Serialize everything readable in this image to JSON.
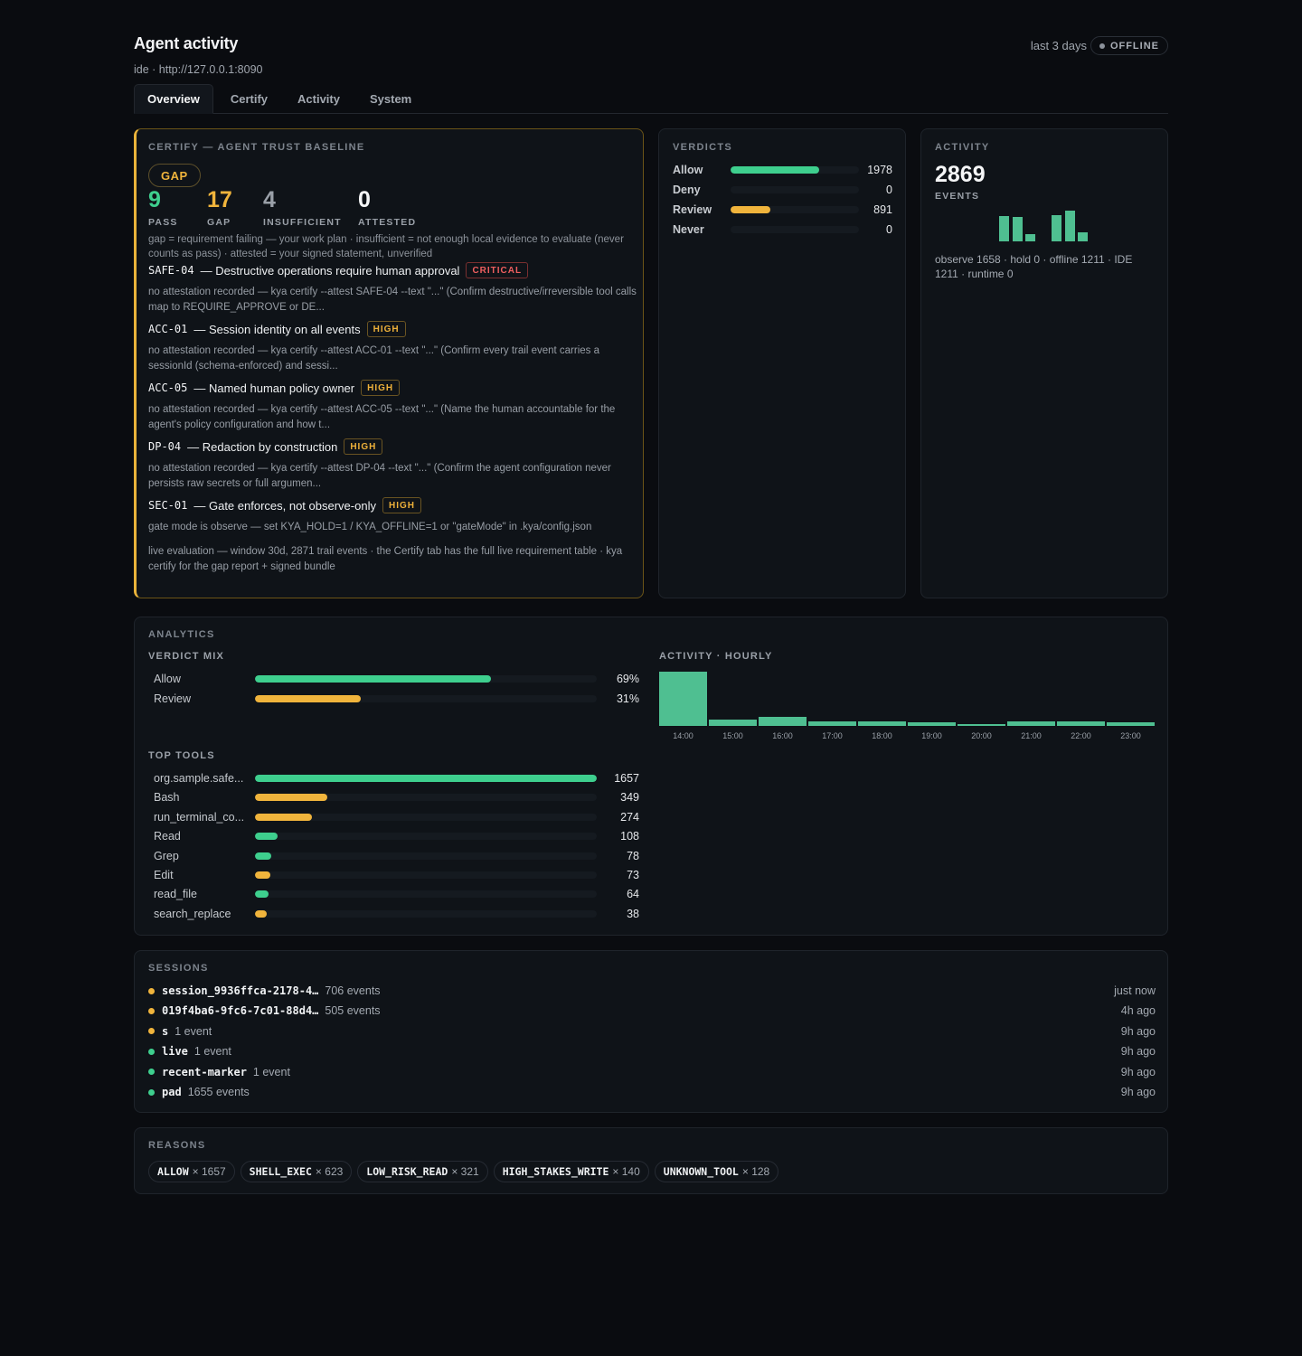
{
  "header": {
    "title": "Agent activity",
    "subtitle": "ide · http://127.0.0.1:8090",
    "range": "last 3 days",
    "status": "OFFLINE"
  },
  "tabs": [
    {
      "label": "Overview",
      "active": true
    },
    {
      "label": "Certify",
      "active": false
    },
    {
      "label": "Activity",
      "active": false
    },
    {
      "label": "System",
      "active": false
    }
  ],
  "certify": {
    "label": "CERTIFY — AGENT TRUST BASELINE",
    "badge": "GAP",
    "stats": [
      {
        "value": "9",
        "label": "PASS",
        "color": "#3ecf8e"
      },
      {
        "value": "17",
        "label": "GAP",
        "color": "#f0b43c"
      },
      {
        "value": "4",
        "label": "INSUFFICIENT",
        "color": "#9aa0a8"
      },
      {
        "value": "0",
        "label": "ATTESTED",
        "color": "#f5f6f7"
      }
    ],
    "legend": "gap = requirement failing — your work plan · insufficient = not enough local evidence to evaluate (never counts as pass) · attested = your signed statement, unverified",
    "requirements": [
      {
        "id": "SAFE-04",
        "title": "— Destructive operations require human approval",
        "severity": "CRITICAL",
        "desc": "no attestation recorded — kya certify --attest SAFE-04 --text \"...\" (Confirm destructive/irreversible tool calls map to REQUIRE_APPROVE or DE..."
      },
      {
        "id": "ACC-01",
        "title": "— Session identity on all events",
        "severity": "HIGH",
        "desc": "no attestation recorded — kya certify --attest ACC-01 --text \"...\" (Confirm every trail event carries a sessionId (schema-enforced) and sessi..."
      },
      {
        "id": "ACC-05",
        "title": "— Named human policy owner",
        "severity": "HIGH",
        "desc": "no attestation recorded — kya certify --attest ACC-05 --text \"...\" (Name the human accountable for the agent's policy configuration and how t..."
      },
      {
        "id": "DP-04",
        "title": "— Redaction by construction",
        "severity": "HIGH",
        "desc": "no attestation recorded — kya certify --attest DP-04 --text \"...\" (Confirm the agent configuration never persists raw secrets or full argumen..."
      },
      {
        "id": "SEC-01",
        "title": "— Gate enforces, not observe-only",
        "severity": "HIGH",
        "desc": "gate mode is observe — set KYA_HOLD=1 / KYA_OFFLINE=1 or \"gateMode\" in .kya/config.json"
      }
    ],
    "live_note": "live evaluation — window 30d, 2871 trail events · the Certify tab has the full live requirement table · kya certify for the gap report + signed bundle"
  },
  "verdicts": {
    "label": "VERDICTS",
    "rows": [
      {
        "name": "Allow",
        "value": 1978,
        "display": "1978",
        "color": "#3ecf8e"
      },
      {
        "name": "Deny",
        "value": 0,
        "display": "0",
        "color": "#ef5f5f"
      },
      {
        "name": "Review",
        "value": 891,
        "display": "891",
        "color": "#f0b43c"
      },
      {
        "name": "Never",
        "value": 0,
        "display": "0",
        "color": "#9aa0a8"
      }
    ],
    "max": 2869
  },
  "activity": {
    "label": "ACTIVITY",
    "total": "2869",
    "events_label": "EVENTS",
    "spark": [
      0.82,
      0.8,
      0.25,
      0,
      0.85,
      1.0,
      0.28
    ],
    "desc": "observe 1658 · hold 0 · offline 1211 · IDE 1211 · runtime 0"
  },
  "analytics": {
    "label": "ANALYTICS",
    "verdict_mix_label": "VERDICT MIX",
    "verdict_mix": [
      {
        "name": "Allow",
        "pct": 69,
        "display": "69%",
        "color": "#3ecf8e"
      },
      {
        "name": "Review",
        "pct": 31,
        "display": "31%",
        "color": "#f0b43c"
      }
    ],
    "top_tools_label": "TOP TOOLS",
    "top_tools": [
      {
        "name": "org.sample.safe...",
        "value": 1657,
        "display": "1657",
        "color": "#3ecf8e"
      },
      {
        "name": "Bash",
        "value": 349,
        "display": "349",
        "color": "#f0b43c"
      },
      {
        "name": "run_terminal_co...",
        "value": 274,
        "display": "274",
        "color": "#f0b43c"
      },
      {
        "name": "Read",
        "value": 108,
        "display": "108",
        "color": "#3ecf8e"
      },
      {
        "name": "Grep",
        "value": 78,
        "display": "78",
        "color": "#3ecf8e"
      },
      {
        "name": "Edit",
        "value": 73,
        "display": "73",
        "color": "#f0b43c"
      },
      {
        "name": "read_file",
        "value": 64,
        "display": "64",
        "color": "#3ecf8e"
      },
      {
        "name": "search_replace",
        "value": 38,
        "display": "38",
        "color": "#f0b43c"
      }
    ],
    "hourly_label": "ACTIVITY · HOURLY",
    "hourly": [
      {
        "hour": "14:00",
        "value": 1.0
      },
      {
        "hour": "15:00",
        "value": 0.12
      },
      {
        "hour": "16:00",
        "value": 0.17
      },
      {
        "hour": "17:00",
        "value": 0.08
      },
      {
        "hour": "18:00",
        "value": 0.08
      },
      {
        "hour": "19:00",
        "value": 0.07
      },
      {
        "hour": "20:00",
        "value": 0.03
      },
      {
        "hour": "21:00",
        "value": 0.08
      },
      {
        "hour": "22:00",
        "value": 0.08
      },
      {
        "hour": "23:00",
        "value": 0.07
      }
    ]
  },
  "sessions": {
    "label": "SESSIONS",
    "rows": [
      {
        "name": "session_9936ffca-2178-4…",
        "count": "706 events",
        "time": "just now",
        "color": "#f0b43c"
      },
      {
        "name": "019f4ba6-9fc6-7c01-88d4…",
        "count": "505 events",
        "time": "4h ago",
        "color": "#f0b43c"
      },
      {
        "name": "s",
        "count": "1 event",
        "time": "9h ago",
        "color": "#f0b43c"
      },
      {
        "name": "live",
        "count": "1 event",
        "time": "9h ago",
        "color": "#3ecf8e"
      },
      {
        "name": "recent-marker",
        "count": "1 event",
        "time": "9h ago",
        "color": "#3ecf8e"
      },
      {
        "name": "pad",
        "count": "1655 events",
        "time": "9h ago",
        "color": "#3ecf8e"
      }
    ]
  },
  "reasons": {
    "label": "REASONS",
    "chips": [
      {
        "code": "ALLOW",
        "count": "× 1657"
      },
      {
        "code": "SHELL_EXEC",
        "count": "× 623"
      },
      {
        "code": "LOW_RISK_READ",
        "count": "× 321"
      },
      {
        "code": "HIGH_STAKES_WRITE",
        "count": "× 140"
      },
      {
        "code": "UNKNOWN_TOOL",
        "count": "× 128"
      }
    ]
  }
}
